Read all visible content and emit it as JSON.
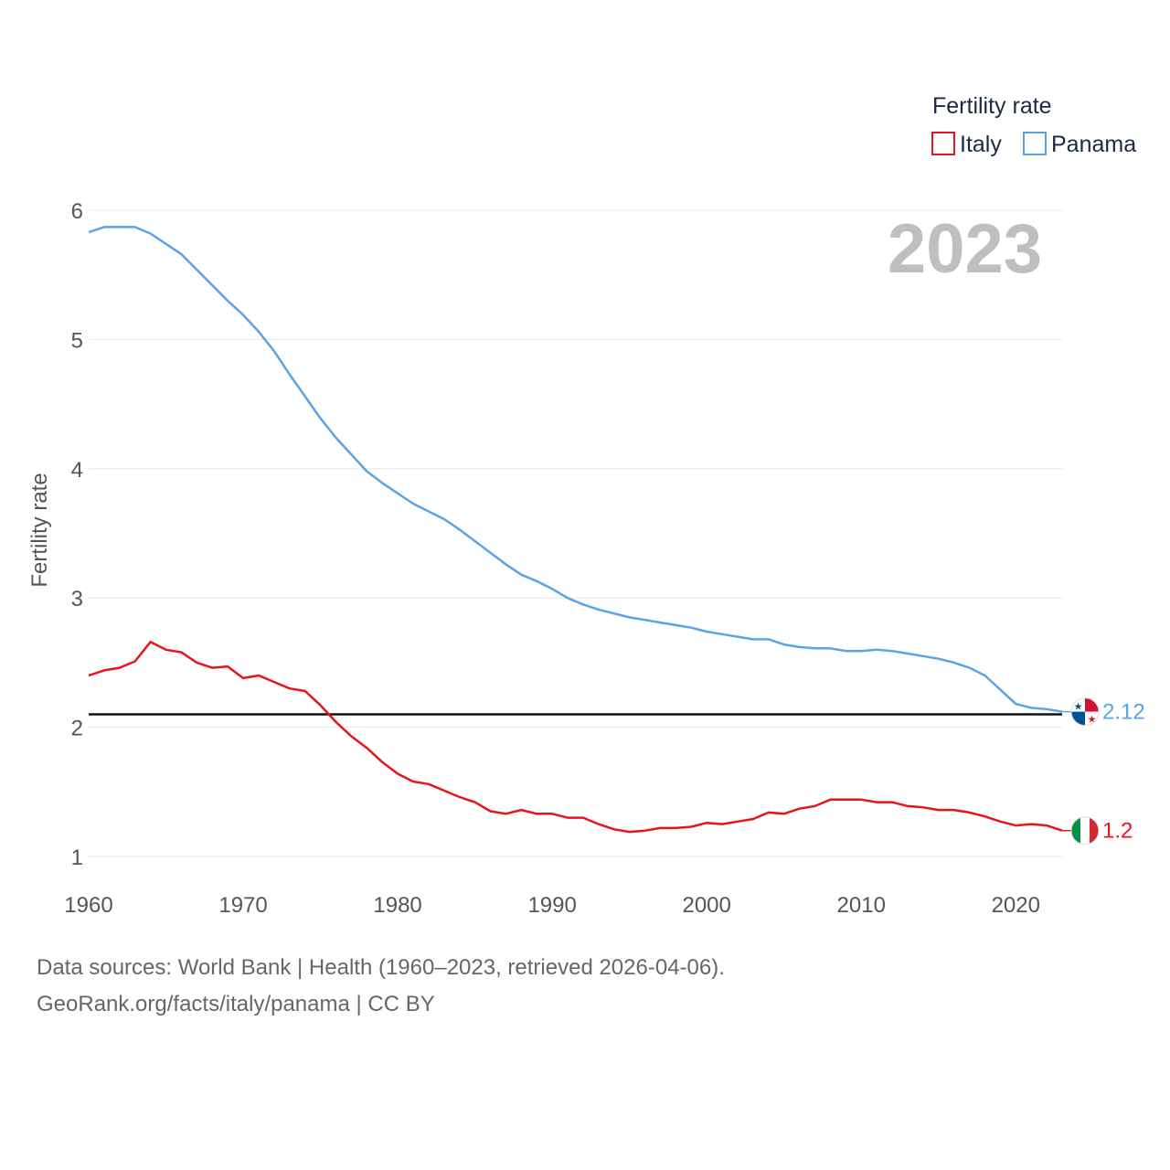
{
  "chart_data": {
    "type": "line",
    "title": "",
    "xlabel": "",
    "ylabel": "Fertility rate",
    "xlim": [
      1960,
      2023
    ],
    "ylim": [
      0.95,
      6
    ],
    "x_ticks": [
      1960,
      1970,
      1980,
      1990,
      2000,
      2010,
      2020
    ],
    "y_ticks": [
      1,
      2,
      3,
      4,
      5,
      6
    ],
    "legend_title": "Fertility rate",
    "legend_position": "top-right",
    "year_label": "2023",
    "reference_line": 2.1,
    "x": [
      1960,
      1961,
      1962,
      1963,
      1964,
      1965,
      1966,
      1967,
      1968,
      1969,
      1970,
      1971,
      1972,
      1973,
      1974,
      1975,
      1976,
      1977,
      1978,
      1979,
      1980,
      1981,
      1982,
      1983,
      1984,
      1985,
      1986,
      1987,
      1988,
      1989,
      1990,
      1991,
      1992,
      1993,
      1994,
      1995,
      1996,
      1997,
      1998,
      1999,
      2000,
      2001,
      2002,
      2003,
      2004,
      2005,
      2006,
      2007,
      2008,
      2009,
      2010,
      2011,
      2012,
      2013,
      2014,
      2015,
      2016,
      2017,
      2018,
      2019,
      2020,
      2021,
      2022,
      2023
    ],
    "series": [
      {
        "name": "Italy",
        "color": "#e8141c",
        "end_label": "1.2",
        "flag": "italy",
        "values": [
          2.4,
          2.44,
          2.46,
          2.51,
          2.66,
          2.6,
          2.58,
          2.5,
          2.46,
          2.47,
          2.38,
          2.4,
          2.35,
          2.3,
          2.28,
          2.17,
          2.04,
          1.93,
          1.84,
          1.73,
          1.64,
          1.58,
          1.56,
          1.51,
          1.46,
          1.42,
          1.35,
          1.33,
          1.36,
          1.33,
          1.33,
          1.3,
          1.3,
          1.25,
          1.21,
          1.19,
          1.2,
          1.22,
          1.22,
          1.23,
          1.26,
          1.25,
          1.27,
          1.29,
          1.34,
          1.33,
          1.37,
          1.39,
          1.44,
          1.44,
          1.44,
          1.42,
          1.42,
          1.39,
          1.38,
          1.36,
          1.36,
          1.34,
          1.31,
          1.27,
          1.24,
          1.25,
          1.24,
          1.2
        ]
      },
      {
        "name": "Panama",
        "color": "#5aa3e6",
        "end_label": "2.12",
        "flag": "panama",
        "values": [
          5.83,
          5.87,
          5.87,
          5.87,
          5.82,
          5.74,
          5.66,
          5.54,
          5.42,
          5.3,
          5.19,
          5.06,
          4.91,
          4.73,
          4.56,
          4.39,
          4.24,
          4.11,
          3.98,
          3.89,
          3.81,
          3.73,
          3.67,
          3.61,
          3.53,
          3.44,
          3.35,
          3.26,
          3.18,
          3.13,
          3.07,
          3.0,
          2.95,
          2.91,
          2.88,
          2.85,
          2.83,
          2.81,
          2.79,
          2.77,
          2.74,
          2.72,
          2.7,
          2.68,
          2.68,
          2.64,
          2.62,
          2.61,
          2.61,
          2.59,
          2.59,
          2.6,
          2.59,
          2.57,
          2.55,
          2.53,
          2.5,
          2.46,
          2.4,
          2.29,
          2.18,
          2.15,
          2.14,
          2.12
        ]
      }
    ]
  },
  "footer": {
    "sources": "Data sources: World Bank | Health (1960–2023, retrieved 2026-04-06).",
    "credit": "GeoRank.org/facts/italy/panama | CC BY"
  }
}
